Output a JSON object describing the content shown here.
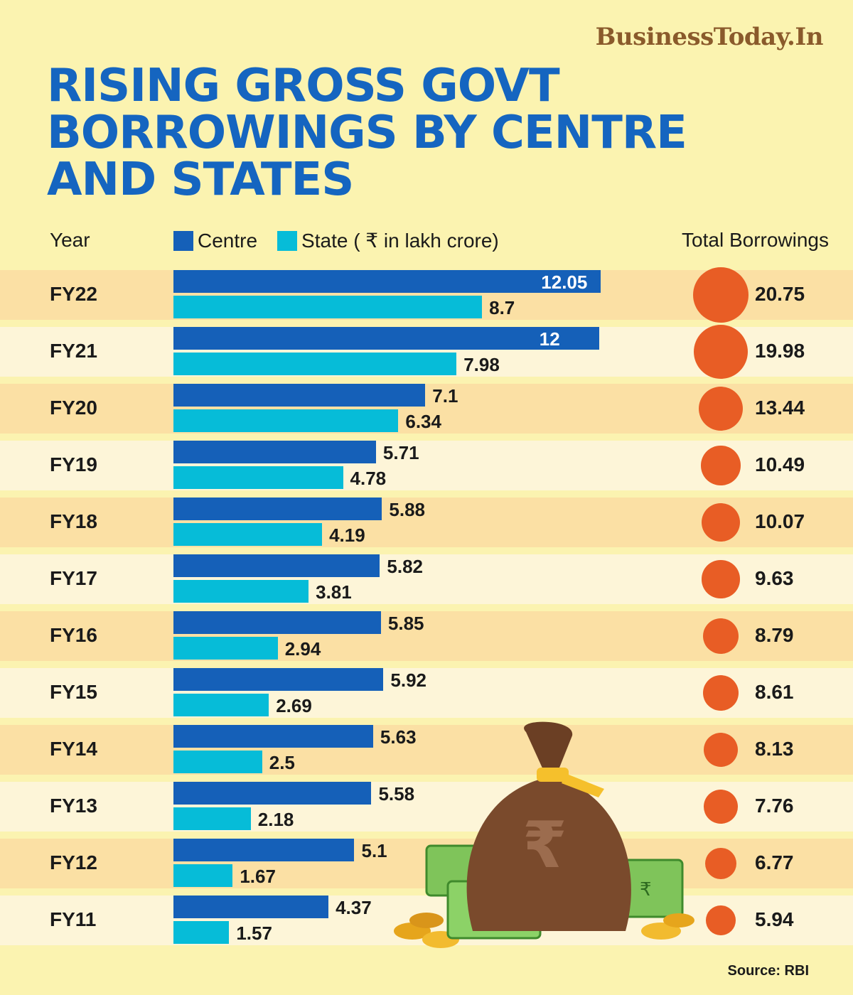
{
  "brand": "BusinessToday.In",
  "title": "RISING GROSS GOVT BORROWINGS BY CENTRE AND STATES",
  "headers": {
    "year": "Year",
    "centre": "Centre",
    "state": "State ( ₹ in lakh crore)",
    "total": "Total Borrowings"
  },
  "source": "Source: RBI",
  "colors": {
    "background": "#fbf3b0",
    "title": "#1565c0",
    "centre": "#1560b8",
    "state": "#06bcd8",
    "total": "#e85d25",
    "band_dark": "#fbe0a4",
    "band_light": "#fdf5d8"
  },
  "chart_data": {
    "type": "bar",
    "orientation": "horizontal",
    "title": "RISING GROSS GOVT BORROWINGS BY CENTRE AND STATES",
    "unit": "₹ in lakh crore",
    "categories": [
      "FY22",
      "FY21",
      "FY20",
      "FY19",
      "FY18",
      "FY17",
      "FY16",
      "FY15",
      "FY14",
      "FY13",
      "FY12",
      "FY11"
    ],
    "series": [
      {
        "name": "Centre",
        "values": [
          12.05,
          12,
          7.1,
          5.71,
          5.88,
          5.82,
          5.85,
          5.92,
          5.63,
          5.58,
          5.1,
          4.37
        ]
      },
      {
        "name": "State",
        "values": [
          8.7,
          7.98,
          6.34,
          4.78,
          4.19,
          3.81,
          2.94,
          2.69,
          2.5,
          2.18,
          1.67,
          1.57
        ]
      }
    ],
    "labels": {
      "centre": [
        "12.05",
        "12",
        "7.1",
        "5.71",
        "5.88",
        "5.82",
        "5.85",
        "5.92",
        "5.63",
        "5.58",
        "5.1",
        "4.37"
      ],
      "state": [
        "8.7",
        "7.98",
        "6.34",
        "4.78",
        "4.19",
        "3.81",
        "2.94",
        "2.69",
        "2.5",
        "2.18",
        "1.67",
        "1.57"
      ]
    },
    "totals": {
      "name": "Total Borrowings",
      "values": [
        20.75,
        19.98,
        13.44,
        10.49,
        10.07,
        9.63,
        8.79,
        8.61,
        8.13,
        7.76,
        6.77,
        5.94
      ],
      "labels": [
        "20.75",
        "19.98",
        "13.44",
        "10.49",
        "10.07",
        "9.63",
        "8.79",
        "8.61",
        "8.13",
        "7.76",
        "6.77",
        "5.94"
      ]
    }
  }
}
